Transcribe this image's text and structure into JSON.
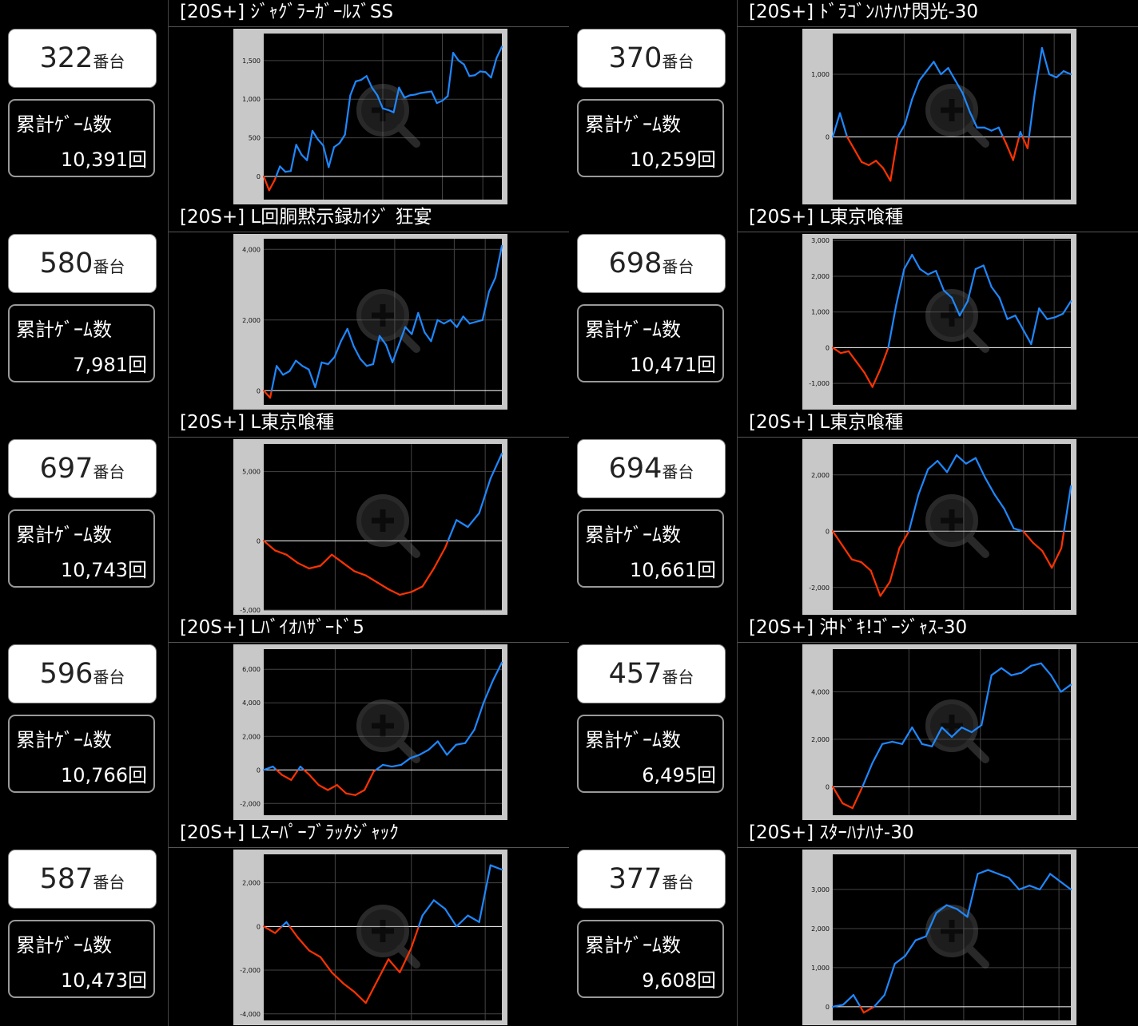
{
  "labels": {
    "unit": "番台",
    "games_label": "累計ｹﾞｰﾑ数"
  },
  "colors": {
    "positive": "#1e88ff",
    "negative": "#ff3300",
    "plot_bg": "#000000",
    "frame": "#c8c8c8",
    "grid": "#444444",
    "zero": "#ffffff",
    "tick": "#ffffff"
  },
  "icons": {
    "chart_overlay": "zoom-in-icon"
  },
  "machines": [
    {
      "number": "322",
      "games": "10,391回",
      "title": "[20S+] ｼﾞｬｸﾞﾗｰｶﾞｰﾙｽﾞSS"
    },
    {
      "number": "370",
      "games": "10,259回",
      "title": "[20S+] ﾄﾞﾗｺﾞﾝﾊﾅﾊﾅ閃光-30"
    },
    {
      "number": "580",
      "games": "7,981回",
      "title": "[20S+] L回胴黙示録ｶｲｼﾞ 狂宴"
    },
    {
      "number": "698",
      "games": "10,471回",
      "title": "[20S+] L東京喰種"
    },
    {
      "number": "697",
      "games": "10,743回",
      "title": "[20S+] L東京喰種"
    },
    {
      "number": "694",
      "games": "10,661回",
      "title": "[20S+] L東京喰種"
    },
    {
      "number": "596",
      "games": "10,766回",
      "title": "[20S+] Lﾊﾞｲｵﾊｻﾞｰﾄﾞ5"
    },
    {
      "number": "457",
      "games": "6,495回",
      "title": "[20S+] 沖ﾄﾞｷ!ｺﾞｰｼﾞｬｽ-30"
    },
    {
      "number": "587",
      "games": "10,473回",
      "title": "[20S+] Lｽｰﾊﾟｰﾌﾞﾗｯｸｼﾞｬｯｸ"
    },
    {
      "number": "377",
      "games": "9,608回",
      "title": "[20S+] ｽﾀｰﾊﾅﾊﾅ-30"
    }
  ],
  "chart_data": [
    {
      "type": "line",
      "ylim": [
        -300,
        1850
      ],
      "yticks": [
        0,
        500,
        1000,
        1500
      ],
      "ytick_labels": [
        "0",
        "500",
        "1,000",
        "1,500"
      ],
      "y": [
        0,
        -180,
        -50,
        130,
        60,
        70,
        410,
        280,
        210,
        590,
        480,
        400,
        120,
        380,
        430,
        540,
        1050,
        1230,
        1250,
        1300,
        1150,
        1050,
        880,
        860,
        830,
        1150,
        1020,
        1050,
        1060,
        1080,
        1090,
        1100,
        950,
        980,
        1040,
        1600,
        1500,
        1450,
        1300,
        1310,
        1360,
        1350,
        1280,
        1530,
        1680
      ],
      "grid_x": [
        0.25,
        0.5,
        0.75,
        0.92
      ]
    },
    {
      "type": "line",
      "ylim": [
        -1000,
        1650
      ],
      "yticks": [
        0,
        1000
      ],
      "ytick_labels": [
        "0",
        "1,000"
      ],
      "y": [
        0,
        380,
        0,
        -200,
        -400,
        -450,
        -380,
        -500,
        -700,
        0,
        200,
        600,
        900,
        1050,
        1200,
        1000,
        1100,
        900,
        700,
        400,
        150,
        150,
        100,
        150,
        -100,
        -370,
        80,
        -180,
        700,
        1420,
        1000,
        950,
        1050,
        1000
      ],
      "grid_x": [
        0.3,
        0.55,
        0.8,
        0.93
      ]
    },
    {
      "type": "line",
      "ylim": [
        -400,
        4300
      ],
      "yticks": [
        0,
        2000,
        4000
      ],
      "ytick_labels": [
        "0",
        "2,000",
        "4,000"
      ],
      "y": [
        0,
        -200,
        700,
        450,
        550,
        850,
        700,
        600,
        100,
        800,
        750,
        950,
        1400,
        1750,
        1250,
        900,
        700,
        750,
        1550,
        1300,
        800,
        1300,
        1800,
        1600,
        2200,
        1650,
        1400,
        2000,
        1900,
        2000,
        1800,
        2100,
        1900,
        1950,
        2000,
        2800,
        3200,
        4100
      ],
      "grid_x": [
        0.3,
        0.55,
        0.8,
        0.93
      ]
    },
    {
      "type": "line",
      "ylim": [
        -1600,
        3050
      ],
      "yticks": [
        -1000,
        0,
        1000,
        2000,
        3000
      ],
      "ytick_labels": [
        "-1,000",
        "0",
        "1,000",
        "2,000",
        "3,000"
      ],
      "y": [
        0,
        -150,
        -100,
        -400,
        -700,
        -1100,
        -600,
        0,
        1200,
        2200,
        2600,
        2200,
        2050,
        2150,
        1600,
        1400,
        900,
        1300,
        2200,
        2300,
        1700,
        1400,
        800,
        900,
        500,
        100,
        1100,
        800,
        850,
        950,
        1300
      ],
      "grid_x": [
        0.3,
        0.55,
        0.8,
        0.93
      ]
    },
    {
      "type": "line",
      "ylim": [
        -5000,
        7000
      ],
      "yticks": [
        -5000,
        0,
        5000
      ],
      "ytick_labels": [
        "-5,000",
        "0",
        "5,000"
      ],
      "y": [
        0,
        -700,
        -1000,
        -1600,
        -2000,
        -1800,
        -1000,
        -1600,
        -2200,
        -2500,
        -3000,
        -3500,
        -3900,
        -3700,
        -3300,
        -2000,
        -500,
        1500,
        1000,
        2000,
        4500,
        6300
      ],
      "grid_x": [
        0.3,
        0.62,
        0.93
      ]
    },
    {
      "type": "line",
      "ylim": [
        -2800,
        3100
      ],
      "yticks": [
        -2000,
        0,
        2000
      ],
      "ytick_labels": [
        "-2,000",
        "0",
        "2,000"
      ],
      "y": [
        0,
        -500,
        -1000,
        -1100,
        -1400,
        -2300,
        -1800,
        -600,
        0,
        1300,
        2200,
        2500,
        2100,
        2700,
        2400,
        2600,
        1900,
        1300,
        800,
        100,
        0,
        -400,
        -700,
        -1300,
        -600,
        1600
      ],
      "grid_x": [
        0.3,
        0.55,
        0.8,
        0.93
      ]
    },
    {
      "type": "line",
      "ylim": [
        -2700,
        7200
      ],
      "yticks": [
        -2000,
        0,
        2000,
        4000,
        6000
      ],
      "ytick_labels": [
        "-2,000",
        "0",
        "2,000",
        "4,000",
        "6,000"
      ],
      "y": [
        0,
        200,
        -300,
        -600,
        200,
        -300,
        -900,
        -1200,
        -900,
        -1400,
        -1500,
        -1200,
        -100,
        300,
        200,
        300,
        700,
        900,
        1200,
        1700,
        900,
        1500,
        1600,
        2400,
        4000,
        5300,
        6400
      ],
      "grid_x": [
        0.3,
        0.62,
        0.93
      ]
    },
    {
      "type": "line",
      "ylim": [
        -1200,
        5800
      ],
      "yticks": [
        0,
        2000,
        4000
      ],
      "ytick_labels": [
        "0",
        "2,000",
        "4,000"
      ],
      "y": [
        0,
        -700,
        -900,
        0,
        1000,
        1800,
        1900,
        1800,
        2500,
        1800,
        1700,
        2500,
        2100,
        2500,
        2300,
        2600,
        4700,
        5000,
        4700,
        4800,
        5100,
        5200,
        4700,
        4000,
        4300
      ],
      "grid_x": [
        0.32,
        0.62,
        0.95
      ]
    },
    {
      "type": "line",
      "ylim": [
        -4300,
        3300
      ],
      "yticks": [
        -4000,
        -2000,
        0,
        2000
      ],
      "ytick_labels": [
        "-4,000",
        "-2,000",
        "0",
        "2,000"
      ],
      "y": [
        0,
        -300,
        200,
        -500,
        -1100,
        -1400,
        -2100,
        -2600,
        -3000,
        -3500,
        -2500,
        -1500,
        -2100,
        -1000,
        500,
        1200,
        800,
        0,
        500,
        200,
        2800,
        2600
      ],
      "grid_x": [
        0.3,
        0.62,
        0.93
      ]
    },
    {
      "type": "line",
      "ylim": [
        -350,
        3900
      ],
      "yticks": [
        0,
        1000,
        2000,
        3000
      ],
      "ytick_labels": [
        "0",
        "1,000",
        "2,000",
        "3,000"
      ],
      "y": [
        0,
        50,
        300,
        -150,
        0,
        300,
        1100,
        1300,
        1700,
        1800,
        2400,
        2600,
        2500,
        2300,
        3400,
        3500,
        3400,
        3300,
        3000,
        3100,
        3000,
        3400,
        3200,
        3000
      ],
      "grid_x": [
        0.3,
        0.55,
        0.8,
        0.95
      ]
    }
  ]
}
